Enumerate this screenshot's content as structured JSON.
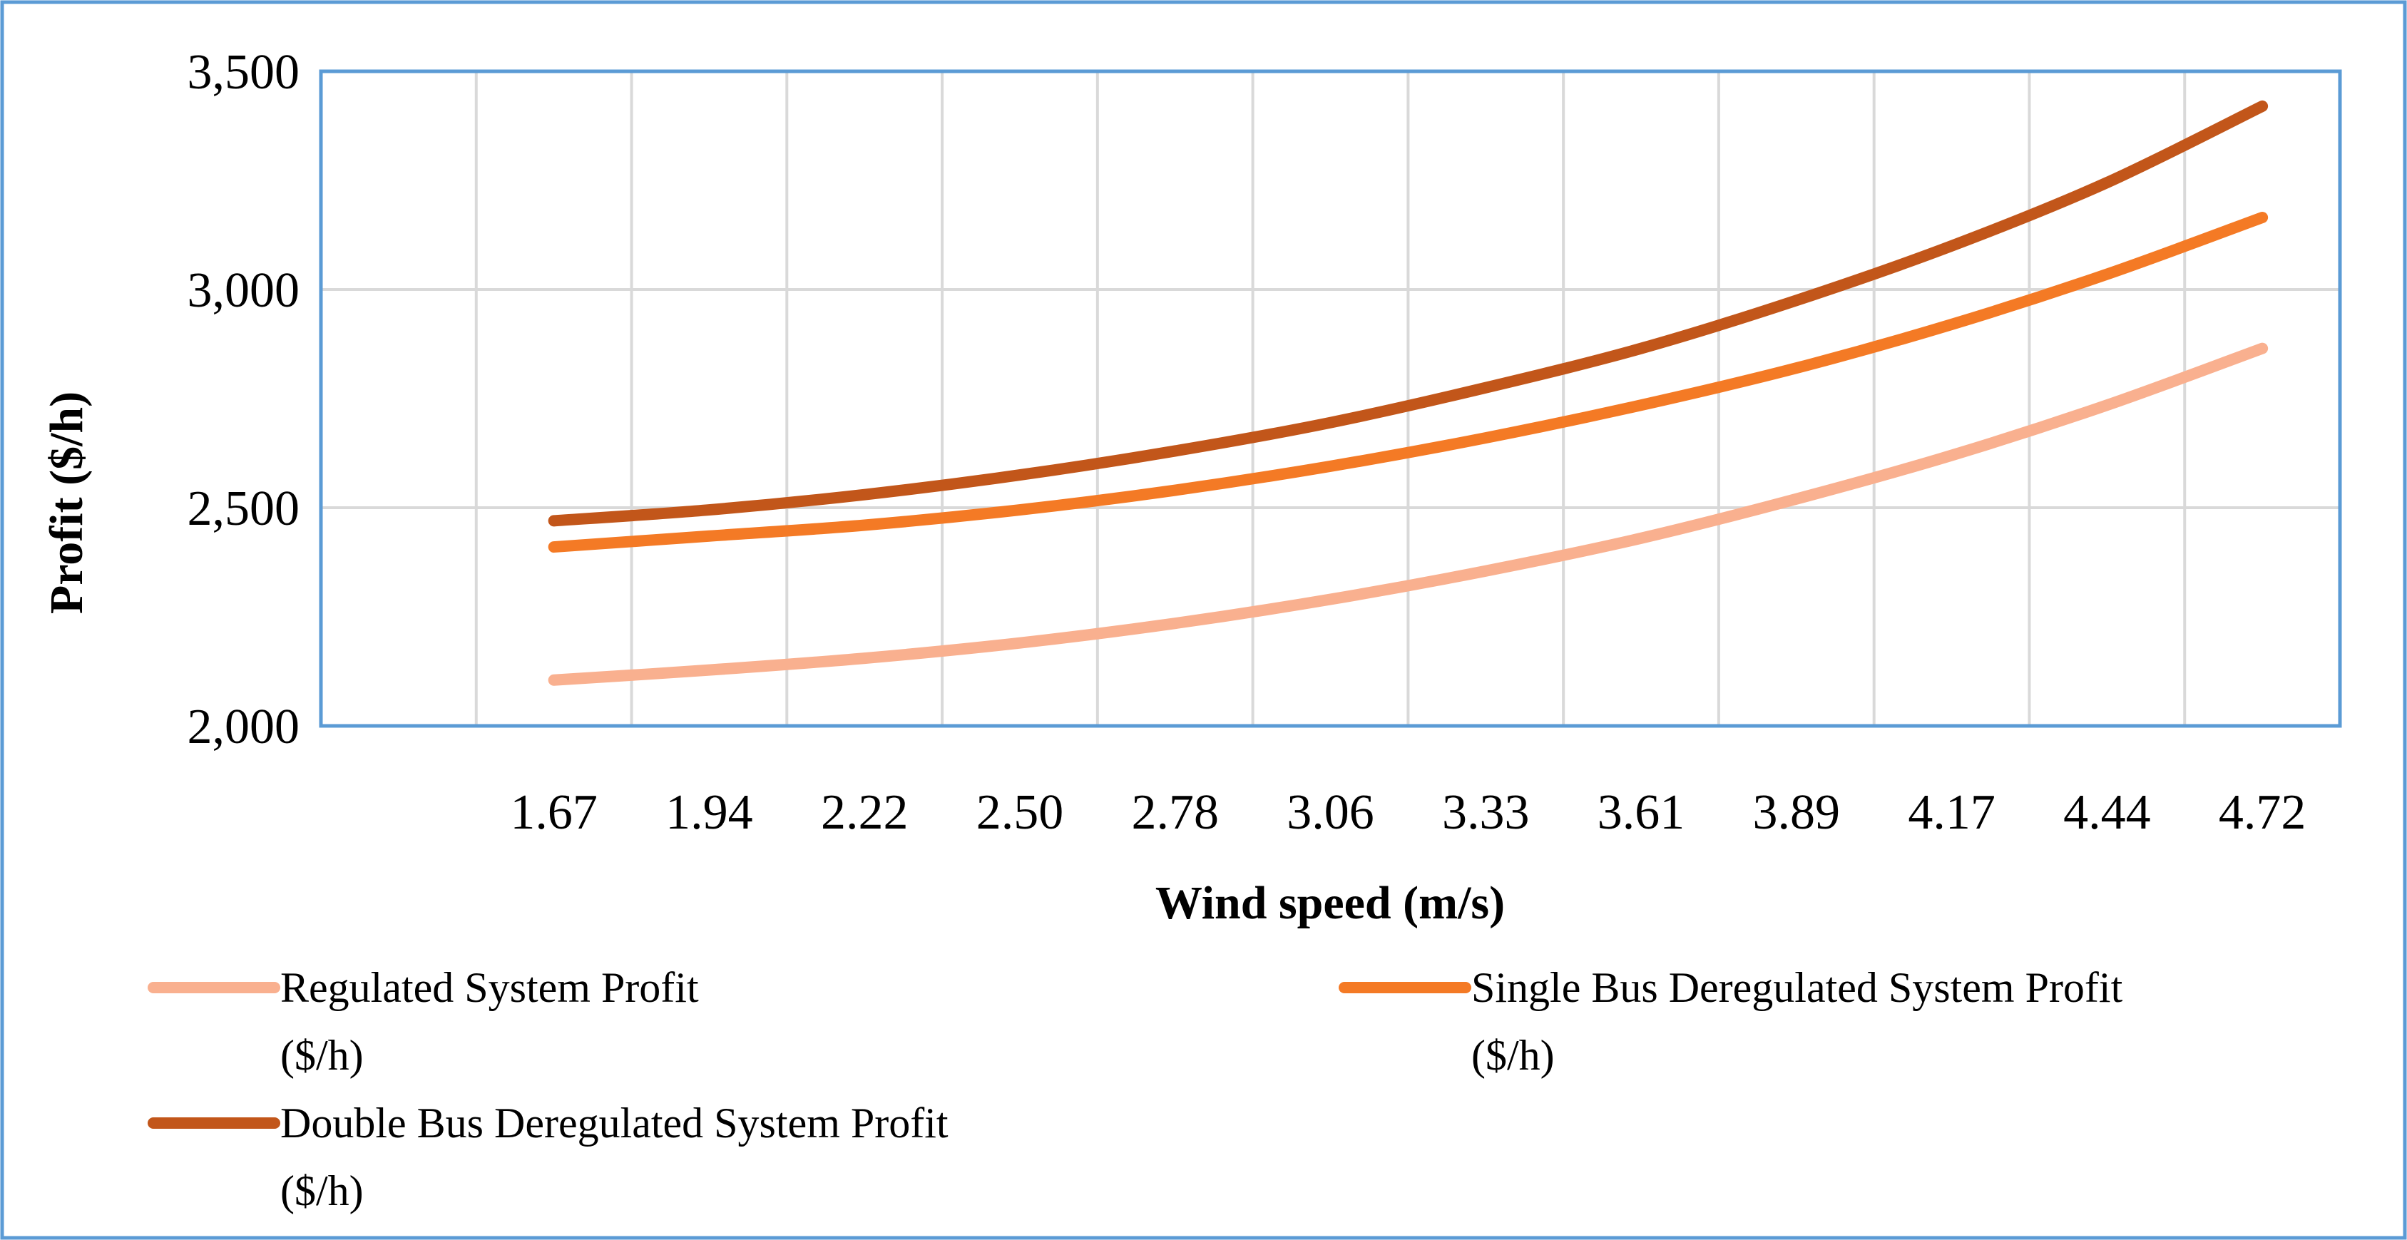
{
  "colors": {
    "frame": "#5b9bd5",
    "grid": "#d9d9d9",
    "background": "#ffffff"
  },
  "chart_data": {
    "type": "line",
    "title": "",
    "xlabel": "Wind speed (m/s)",
    "ylabel": "Profit ($/h)",
    "categories": [
      "1.67",
      "1.94",
      "2.22",
      "2.50",
      "2.78",
      "3.06",
      "3.33",
      "3.61",
      "3.89",
      "4.17",
      "4.44",
      "4.72"
    ],
    "ylim": [
      2000,
      3500
    ],
    "yticks": [
      2000,
      2500,
      3000,
      3500
    ],
    "ytick_labels": [
      "2,000",
      "2,500",
      "3,000",
      "3,500"
    ],
    "grid": true,
    "legend_position": "bottom",
    "series": [
      {
        "name": "Regulated System Profit ($/h)",
        "label_lines": [
          "Regulated System Profit",
          "($/h)"
        ],
        "color": "#f9b08f",
        "values": [
          2105,
          2128,
          2155,
          2190,
          2235,
          2290,
          2355,
          2430,
          2520,
          2620,
          2735,
          2865
        ]
      },
      {
        "name": "Single Bus Deregulated System Profit ($/h)",
        "label_lines": [
          "Single Bus Deregulated System Profit",
          "($/h)"
        ],
        "color": "#f47a25",
        "values": [
          2410,
          2435,
          2460,
          2495,
          2540,
          2595,
          2660,
          2735,
          2820,
          2920,
          3035,
          3165
        ]
      },
      {
        "name": "Double Bus Deregulated System Profit ($/h)",
        "label_lines": [
          "Double Bus Deregulated System Profit",
          "($/h)"
        ],
        "color": "#c2561a",
        "values": [
          2470,
          2495,
          2530,
          2575,
          2630,
          2695,
          2775,
          2865,
          2975,
          3100,
          3245,
          3420
        ]
      }
    ]
  }
}
